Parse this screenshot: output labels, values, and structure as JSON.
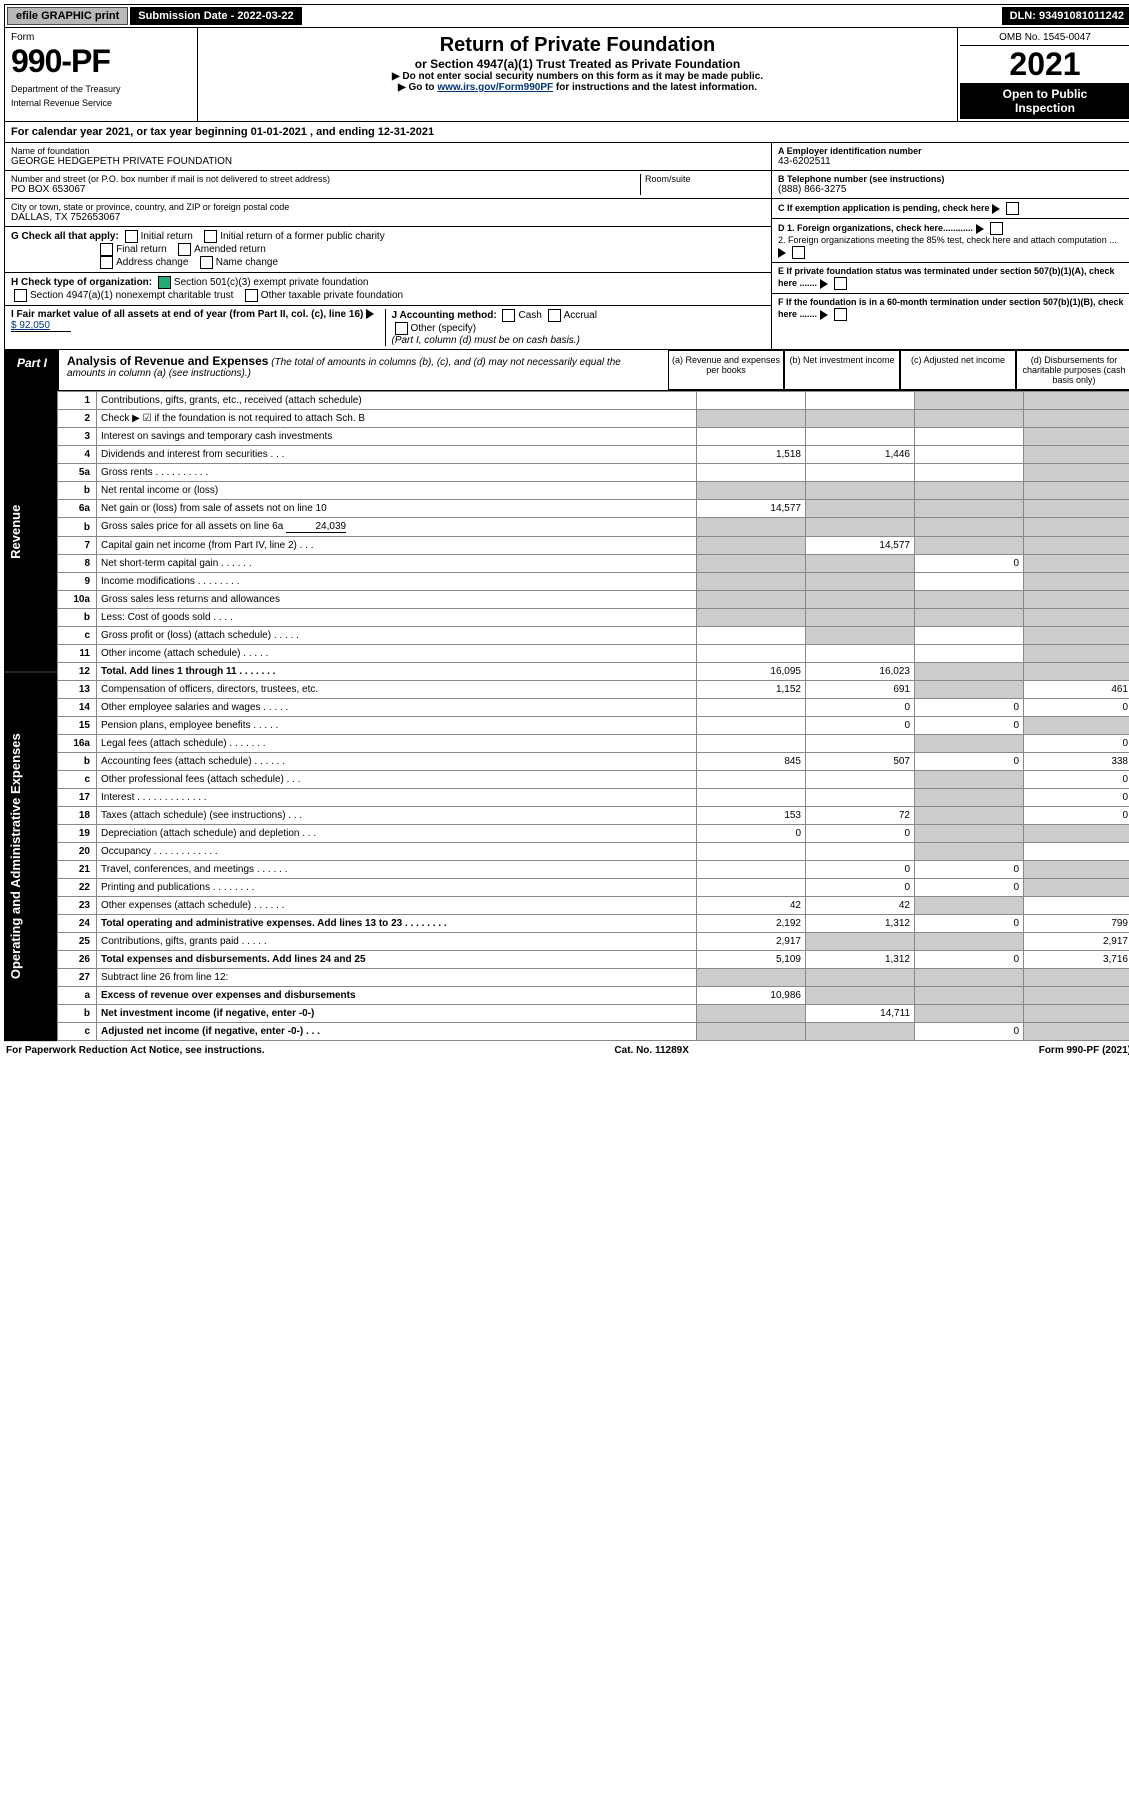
{
  "topbar": {
    "efile": "efile GRAPHIC print",
    "sub_label": "Submission Date - 2022-03-22",
    "dln": "DLN: 93491081011242"
  },
  "header": {
    "form_word": "Form",
    "form_number": "990-PF",
    "dept1": "Department of the Treasury",
    "dept2": "Internal Revenue Service",
    "title": "Return of Private Foundation",
    "subtitle": "or Section 4947(a)(1) Trust Treated as Private Foundation",
    "inst1": "▶ Do not enter social security numbers on this form as it may be made public.",
    "inst2_pre": "▶ Go to ",
    "inst2_link": "www.irs.gov/Form990PF",
    "inst2_post": " for instructions and the latest information.",
    "omb": "OMB No. 1545-0047",
    "year": "2021",
    "open1": "Open to Public",
    "open2": "Inspection"
  },
  "period": "For calendar year 2021, or tax year beginning 01-01-2021                    , and ending 12-31-2021",
  "id": {
    "name_label": "Name of foundation",
    "name": "GEORGE HEDGEPETH PRIVATE FOUNDATION",
    "addr_label": "Number and street (or P.O. box number if mail is not delivered to street address)",
    "addr": "PO BOX 653067",
    "room_label": "Room/suite",
    "city_label": "City or town, state or province, country, and ZIP or foreign postal code",
    "city": "DALLAS, TX  752653067",
    "a_label": "A Employer identification number",
    "a_val": "43-6202511",
    "b_label": "B Telephone number (see instructions)",
    "b_val": "(888) 866-3275",
    "c_label": "C If exemption application is pending, check here",
    "d1": "D 1. Foreign organizations, check here............",
    "d2": "2. Foreign organizations meeting the 85% test, check here and attach computation ...",
    "e_label": "E  If private foundation status was terminated under section 507(b)(1)(A), check here .......",
    "f_label": "F  If the foundation is in a 60-month termination under section 507(b)(1)(B), check here .......",
    "g_label": "G Check all that apply:",
    "g_opts": [
      "Initial return",
      "Initial return of a former public charity",
      "Final return",
      "Amended return",
      "Address change",
      "Name change"
    ],
    "h_label": "H Check type of organization:",
    "h_opts": [
      "Section 501(c)(3) exempt private foundation",
      "Section 4947(a)(1) nonexempt charitable trust",
      "Other taxable private foundation"
    ],
    "i_label": "I Fair market value of all assets at end of year (from Part II, col. (c), line 16)",
    "i_val": "$  92,050",
    "j_label": "J Accounting method:",
    "j_opts": [
      "Cash",
      "Accrual",
      "Other (specify)"
    ],
    "j_note": "(Part I, column (d) must be on cash basis.)"
  },
  "part1": {
    "label": "Part I",
    "title": "Analysis of Revenue and Expenses",
    "note": "(The total of amounts in columns (b), (c), and (d) may not necessarily equal the amounts in column (a) (see instructions).)",
    "col_a": "(a)   Revenue and expenses per books",
    "col_b": "(b)   Net investment income",
    "col_c": "(c)   Adjusted net income",
    "col_d": "(d)   Disbursements for charitable purposes (cash basis only)"
  },
  "side_rev": "Revenue",
  "side_exp": "Operating and Administrative Expenses",
  "rows": {
    "r1": {
      "n": "1",
      "d": "Contributions, gifts, grants, etc., received (attach schedule)"
    },
    "r2": {
      "n": "2",
      "d": "Check ▶ ☑ if the foundation is not required to attach Sch. B"
    },
    "r3": {
      "n": "3",
      "d": "Interest on savings and temporary cash investments"
    },
    "r4": {
      "n": "4",
      "d": "Dividends and interest from securities   .   .   .",
      "a": "1,518",
      "b": "1,446"
    },
    "r5a": {
      "n": "5a",
      "d": "Gross rents   .   .   .   .   .   .   .   .   .   ."
    },
    "r5b": {
      "n": "b",
      "d": "Net rental income or (loss)"
    },
    "r6a": {
      "n": "6a",
      "d": "Net gain or (loss) from sale of assets not on line 10",
      "a": "14,577"
    },
    "r6b": {
      "n": "b",
      "d": "Gross sales price for all assets on line 6a",
      "inline": "24,039"
    },
    "r7": {
      "n": "7",
      "d": "Capital gain net income (from Part IV, line 2)   .   .   .",
      "b": "14,577"
    },
    "r8": {
      "n": "8",
      "d": "Net short-term capital gain   .   .   .   .   .   .",
      "c": "0"
    },
    "r9": {
      "n": "9",
      "d": "Income modifications   .   .   .   .   .   .   .   ."
    },
    "r10a": {
      "n": "10a",
      "d": "Gross sales less returns and allowances"
    },
    "r10b": {
      "n": "b",
      "d": "Less: Cost of goods sold   .   .   .   ."
    },
    "r10c": {
      "n": "c",
      "d": "Gross profit or (loss) (attach schedule)   .   .   .   .   ."
    },
    "r11": {
      "n": "11",
      "d": "Other income (attach schedule)   .   .   .   .   ."
    },
    "r12": {
      "n": "12",
      "d": "Total. Add lines 1 through 11   .   .   .   .   .   .   .",
      "a": "16,095",
      "b": "16,023",
      "bold": true
    },
    "r13": {
      "n": "13",
      "d": "Compensation of officers, directors, trustees, etc.",
      "a": "1,152",
      "b": "691",
      "dd": "461"
    },
    "r14": {
      "n": "14",
      "d": "Other employee salaries and wages   .   .   .   .   .",
      "b": "0",
      "c": "0",
      "dd": "0"
    },
    "r15": {
      "n": "15",
      "d": "Pension plans, employee benefits   .   .   .   .   .",
      "b": "0",
      "c": "0"
    },
    "r16a": {
      "n": "16a",
      "d": "Legal fees (attach schedule)   .   .   .   .   .   .   .",
      "dd": "0"
    },
    "r16b": {
      "n": "b",
      "d": "Accounting fees (attach schedule)   .   .   .   .   .   .",
      "a": "845",
      "b": "507",
      "c": "0",
      "dd": "338"
    },
    "r16c": {
      "n": "c",
      "d": "Other professional fees (attach schedule)   .   .   .",
      "dd": "0"
    },
    "r17": {
      "n": "17",
      "d": "Interest   .   .   .   .   .   .   .   .   .   .   .   .   .",
      "dd": "0"
    },
    "r18": {
      "n": "18",
      "d": "Taxes (attach schedule) (see instructions)   .   .   .",
      "a": "153",
      "b": "72",
      "dd": "0"
    },
    "r19": {
      "n": "19",
      "d": "Depreciation (attach schedule) and depletion   .   .   .",
      "a": "0",
      "b": "0"
    },
    "r20": {
      "n": "20",
      "d": "Occupancy   .   .   .   .   .   .   .   .   .   .   .   ."
    },
    "r21": {
      "n": "21",
      "d": "Travel, conferences, and meetings   .   .   .   .   .   .",
      "b": "0",
      "c": "0"
    },
    "r22": {
      "n": "22",
      "d": "Printing and publications   .   .   .   .   .   .   .   .",
      "b": "0",
      "c": "0"
    },
    "r23": {
      "n": "23",
      "d": "Other expenses (attach schedule)   .   .   .   .   .   .",
      "a": "42",
      "b": "42"
    },
    "r24": {
      "n": "24",
      "d": "Total operating and administrative expenses. Add lines 13 to 23   .   .   .   .   .   .   .   .",
      "a": "2,192",
      "b": "1,312",
      "c": "0",
      "dd": "799",
      "bold": true
    },
    "r25": {
      "n": "25",
      "d": "Contributions, gifts, grants paid   .   .   .   .   .",
      "a": "2,917",
      "dd": "2,917"
    },
    "r26": {
      "n": "26",
      "d": "Total expenses and disbursements. Add lines 24 and 25",
      "a": "5,109",
      "b": "1,312",
      "c": "0",
      "dd": "3,716",
      "bold": true
    },
    "r27": {
      "n": "27",
      "d": "Subtract line 26 from line 12:"
    },
    "r27a": {
      "n": "a",
      "d": "Excess of revenue over expenses and disbursements",
      "a": "10,986",
      "bold": true
    },
    "r27b": {
      "n": "b",
      "d": "Net investment income (if negative, enter -0-)",
      "b": "14,711",
      "bold": true
    },
    "r27c": {
      "n": "c",
      "d": "Adjusted net income (if negative, enter -0-)   .   .   .",
      "c": "0",
      "bold": true
    }
  },
  "footer": {
    "pra": "For Paperwork Reduction Act Notice, see instructions.",
    "cat": "Cat. No. 11289X",
    "form": "Form 990-PF (2021)"
  }
}
